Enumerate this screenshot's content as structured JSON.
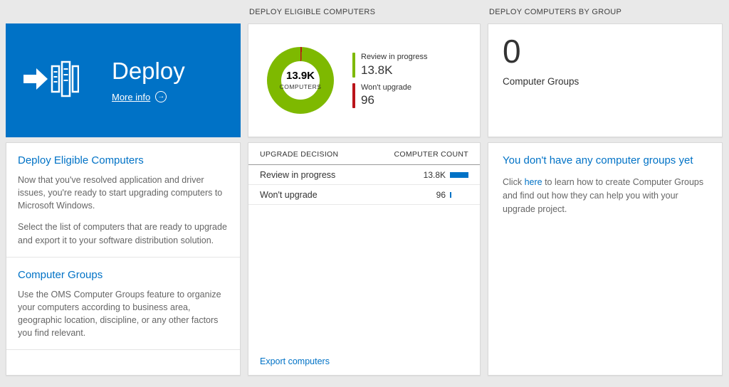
{
  "colors": {
    "oms_blue": "#0072c6",
    "green": "#7eb900",
    "red": "#ba141a",
    "bar_blue": "#0072c6"
  },
  "left_column": {
    "tile": {
      "title": "Deploy",
      "more_info_label": "More info",
      "more_info_icon_glyph": "→"
    },
    "info_card": {
      "sections": [
        {
          "heading": "Deploy Eligible Computers",
          "paragraphs": [
            "Now that you've resolved application and driver issues, you're ready to start upgrading computers to Microsoft Windows.",
            "Select the list of computers that are ready to upgrade and export it to your software distribution solution."
          ]
        },
        {
          "heading": "Computer Groups",
          "paragraphs": [
            "Use the OMS Computer Groups feature to organize your computers according to business area, geographic location, discipline, or any other factors you find relevant."
          ]
        }
      ]
    }
  },
  "middle": {
    "header": "DEPLOY ELIGIBLE COMPUTERS",
    "donut": {
      "center_value": "13.9K",
      "center_label": "COMPUTERS",
      "segments": [
        {
          "color": "#ba141a",
          "pct": 0.7
        },
        {
          "color": "#7eb900",
          "pct": 99.3
        }
      ],
      "legend": [
        {
          "label": "Review in progress",
          "value": "13.8K",
          "color": "#7eb900"
        },
        {
          "label": "Won't upgrade",
          "value": "96",
          "color": "#ba141a"
        }
      ]
    },
    "table": {
      "columns": [
        "UPGRADE DECISION",
        "COMPUTER COUNT"
      ],
      "rows": [
        {
          "label": "Review in progress",
          "value": "13.8K",
          "bar_pct": 100,
          "bar_color": "#0072c6"
        },
        {
          "label": "Won't upgrade",
          "value": "96",
          "bar_pct": 6,
          "bar_color": "#0072c6"
        }
      ]
    },
    "export_link": "Export computers"
  },
  "right": {
    "header": "DEPLOY COMPUTERS BY GROUP",
    "count_value": "0",
    "count_label": "Computer Groups",
    "empty_state": {
      "heading": "You don't have any computer groups yet",
      "text_before": "Click ",
      "link_text": "here",
      "text_after": " to learn how to create Computer Groups and find out how they can help you with your upgrade project."
    }
  },
  "chart_data": {
    "type": "pie",
    "title": "DEPLOY ELIGIBLE COMPUTERS",
    "center_value": "13.9K",
    "center_label": "COMPUTERS",
    "series": [
      {
        "name": "Review in progress",
        "value": 13800,
        "display": "13.8K",
        "color": "#7eb900"
      },
      {
        "name": "Won't upgrade",
        "value": 96,
        "display": "96",
        "color": "#ba141a"
      }
    ],
    "legend_position": "right"
  }
}
